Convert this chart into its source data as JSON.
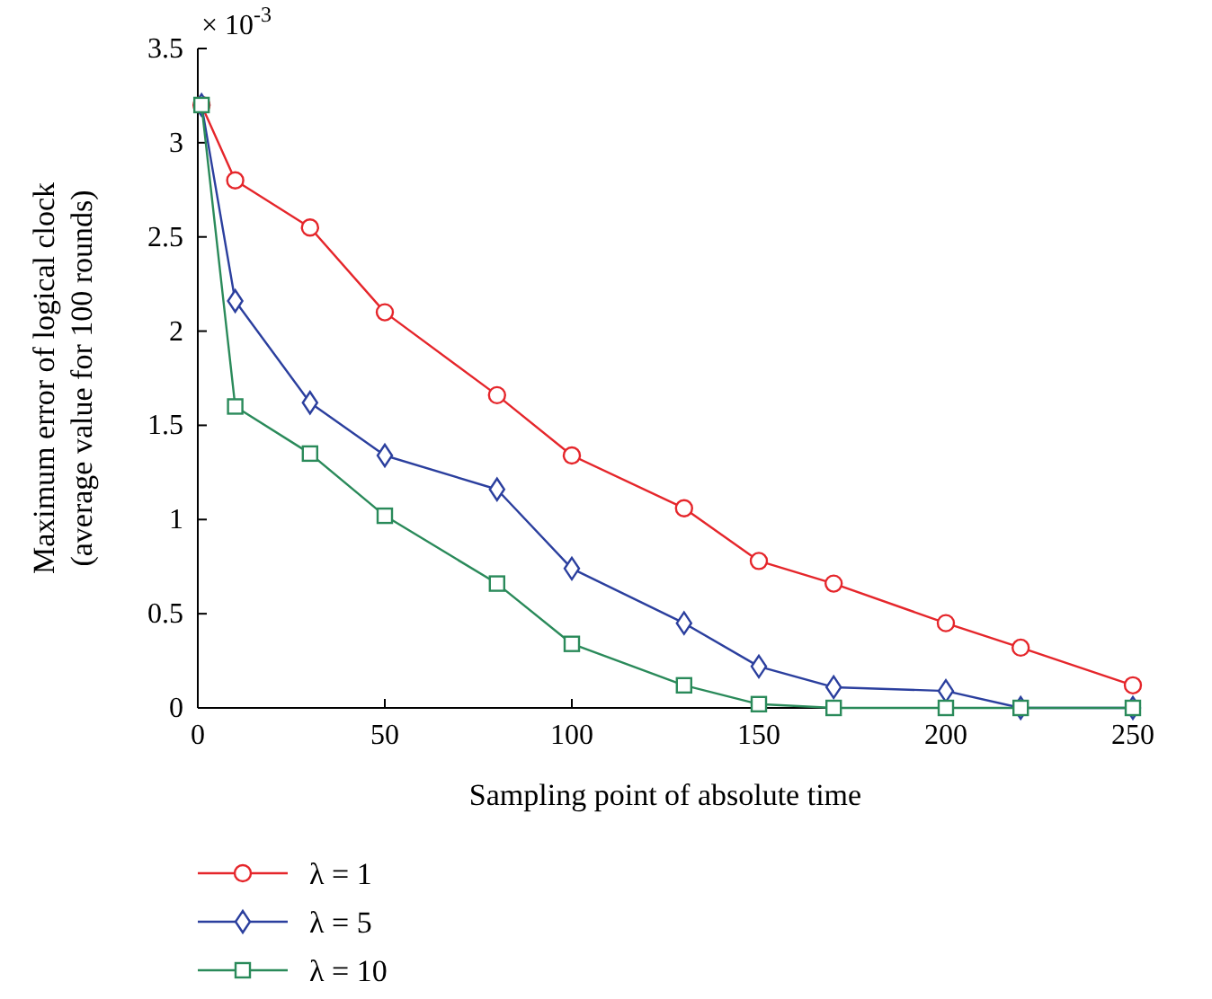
{
  "chart_data": {
    "type": "line",
    "xlabel": "Sampling point of absolute time",
    "ylabel": "Maximum error of logical clock\n(average value for 100 rounds)",
    "annotations": [
      "× 10$^{-3}$"
    ],
    "x": [
      1,
      10,
      30,
      50,
      80,
      100,
      130,
      150,
      170,
      200,
      220,
      250
    ],
    "series": [
      {
        "name": "λ = 1",
        "color": "#e5262b",
        "marker": "circle",
        "values": [
          3.2,
          2.8,
          2.55,
          2.1,
          1.66,
          1.34,
          1.06,
          0.78,
          0.66,
          0.45,
          0.32,
          0.12
        ]
      },
      {
        "name": "λ = 5",
        "color": "#2b3f9e",
        "marker": "diamond",
        "values": [
          3.2,
          2.16,
          1.62,
          1.34,
          1.16,
          0.74,
          0.45,
          0.22,
          0.11,
          0.09,
          0,
          0
        ]
      },
      {
        "name": "λ = 10",
        "color": "#2a8a5a",
        "marker": "square",
        "values": [
          3.2,
          1.6,
          1.35,
          1.02,
          0.66,
          0.34,
          0.12,
          0.02,
          0,
          0,
          0,
          0
        ]
      }
    ],
    "xlim": [
      0,
      250
    ],
    "xticks": [
      0,
      50,
      100,
      150,
      200,
      250
    ],
    "ylim": [
      0,
      3.5
    ],
    "yticks": [
      0,
      0.5,
      1,
      1.5,
      2,
      2.5,
      3,
      3.5
    ],
    "legend": "bottom left",
    "grid": false,
    "line_style": "solid"
  }
}
